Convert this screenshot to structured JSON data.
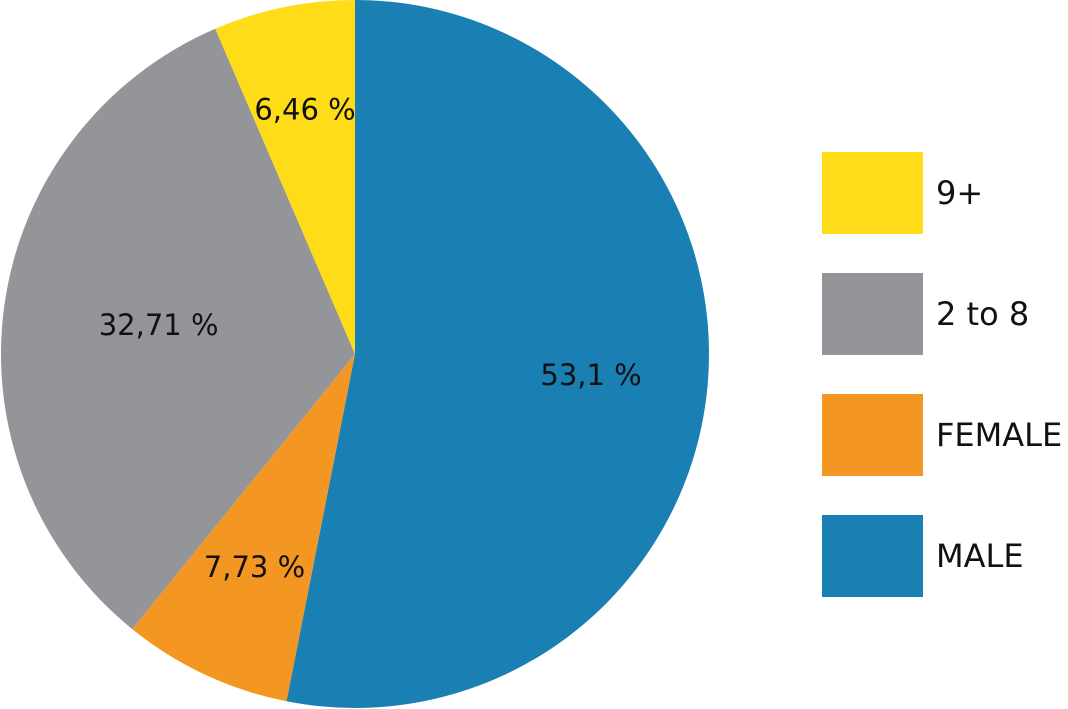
{
  "chart_data": {
    "type": "pie",
    "slices": [
      {
        "label": "MALE",
        "value": 53.1,
        "display": "53,1 %",
        "color": "#1a7fb3"
      },
      {
        "label": "FEMALE",
        "value": 7.73,
        "display": "7,73 %",
        "color": "#f39722"
      },
      {
        "label": "2 to 8",
        "value": 32.71,
        "display": "32,71 %",
        "color": "#939598"
      },
      {
        "label": "9+",
        "value": 6.46,
        "display": "6,46 %",
        "color": "#ffdc18"
      }
    ],
    "legend": [
      {
        "label": "9+",
        "color": "#ffdc18"
      },
      {
        "label": "2 to 8",
        "color": "#939598"
      },
      {
        "label": "FEMALE",
        "color": "#f39722"
      },
      {
        "label": "MALE",
        "color": "#1a7fb3"
      }
    ],
    "legend_position": "right",
    "start_angle": "12 o'clock",
    "direction": "clockwise"
  }
}
